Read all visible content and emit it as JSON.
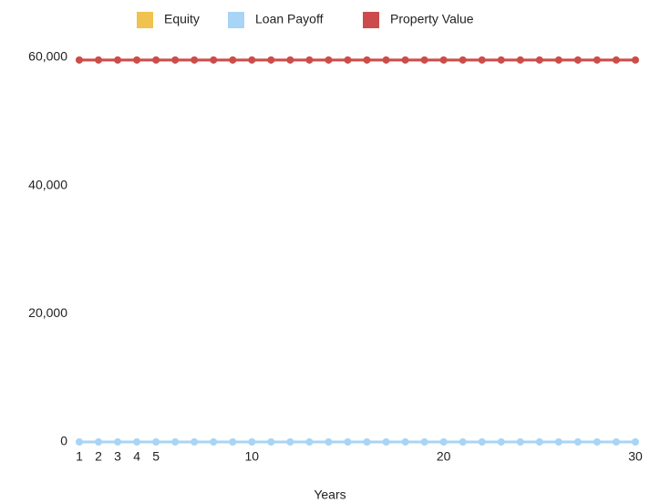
{
  "chart_data": {
    "type": "line",
    "x_label": "Years",
    "x": [
      1,
      2,
      3,
      4,
      5,
      6,
      7,
      8,
      9,
      10,
      11,
      12,
      13,
      14,
      15,
      16,
      17,
      18,
      19,
      20,
      21,
      22,
      23,
      24,
      25,
      26,
      27,
      28,
      29,
      30
    ],
    "series": [
      {
        "name": "Equity",
        "color": "#f0c24f",
        "values": [
          59600,
          59600,
          59600,
          59600,
          59600,
          59600,
          59600,
          59600,
          59600,
          59600,
          59600,
          59600,
          59600,
          59600,
          59600,
          59600,
          59600,
          59600,
          59600,
          59600,
          59600,
          59600,
          59600,
          59600,
          59600,
          59600,
          59600,
          59600,
          59600,
          59600
        ]
      },
      {
        "name": "Loan Payoff",
        "color": "#a8d4f5",
        "values": [
          0,
          0,
          0,
          0,
          0,
          0,
          0,
          0,
          0,
          0,
          0,
          0,
          0,
          0,
          0,
          0,
          0,
          0,
          0,
          0,
          0,
          0,
          0,
          0,
          0,
          0,
          0,
          0,
          0,
          0
        ]
      },
      {
        "name": "Property Value",
        "color": "#cc4c4c",
        "values": [
          59600,
          59600,
          59600,
          59600,
          59600,
          59600,
          59600,
          59600,
          59600,
          59600,
          59600,
          59600,
          59600,
          59600,
          59600,
          59600,
          59600,
          59600,
          59600,
          59600,
          59600,
          59600,
          59600,
          59600,
          59600,
          59600,
          59600,
          59600,
          59600,
          59600
        ]
      }
    ],
    "xlim": [
      1,
      30
    ],
    "xticks": [
      1,
      2,
      3,
      4,
      5,
      10,
      20,
      30
    ],
    "ylim": [
      0,
      60000
    ],
    "yticks": [
      0,
      {
        "value": 20000,
        "label": "20,000"
      },
      {
        "value": 40000,
        "label": "40,000"
      },
      {
        "value": 60000,
        "label": "60,000"
      }
    ],
    "grid": false,
    "legend": "top"
  }
}
